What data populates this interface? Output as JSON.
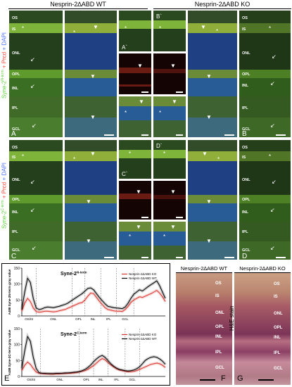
{
  "headers": {
    "wt": "Nesprin-2∆ABD WT",
    "ko": "Nesprin-2∆ABD KO"
  },
  "side_labels": {
    "top": {
      "green": "Syne-2",
      "green_sup": "N-term",
      "red": " + Prcd",
      "blue": " + DAPI"
    },
    "bottom": {
      "green": "Syne-2",
      "green_sup": "C-term",
      "red": " + Prcd",
      "blue": " + DAPI"
    }
  },
  "layers": {
    "os": "OS",
    "is": "IS",
    "onl": "ONL",
    "opl": "OPL",
    "inl": "INL",
    "ipl": "IPL",
    "gcl": "GCL"
  },
  "panel_letters": {
    "A": "A",
    "B": "B",
    "C": "C",
    "D": "D",
    "Ap": "A`",
    "Bp": "B`",
    "Cp": "C`",
    "Dp": "D`",
    "E": "E",
    "F": "F",
    "G": "G"
  },
  "marks": {
    "star": "*",
    "arrow": "↙",
    "arrowhead": "▼"
  },
  "he": {
    "title_wt": "Nesprin-2∆ABD WT",
    "title_ko": "Nesprin-2∆ABD KO",
    "stain": "H&E stain"
  },
  "chart_data": [
    {
      "type": "line",
      "title": "Syne-2N-term",
      "title_main": "Syne-2",
      "title_sup": "N-term",
      "ylabel": "A488 Syne-2N-term gray value",
      "ylim": [
        0,
        150
      ],
      "yticks": [
        0,
        50,
        100,
        150
      ],
      "xlim": [
        0,
        100
      ],
      "layer_boundaries": [
        10,
        35,
        44,
        55,
        66,
        78
      ],
      "layer_labels": [
        "OS/IS",
        "ONL",
        "OPL",
        "INL",
        "IPL",
        "GCL"
      ],
      "layer_label_x": [
        5,
        22,
        39.5,
        49.5,
        60.5,
        72
      ],
      "legend_placement": "top-right",
      "series": [
        {
          "name": "Nesprin-2∆ABD KO",
          "color": "#d9342b",
          "x": [
            0,
            2,
            4,
            6,
            8,
            10,
            12,
            14,
            16,
            18,
            20,
            22,
            24,
            26,
            28,
            30,
            32,
            34,
            36,
            38,
            40,
            42,
            44,
            46,
            48,
            50,
            52,
            54,
            56,
            58,
            60,
            62,
            64,
            66,
            68,
            70,
            72,
            74,
            76,
            78,
            80,
            82,
            84,
            86,
            88,
            90,
            92,
            94,
            96,
            98,
            100
          ],
          "y": [
            15,
            40,
            55,
            45,
            25,
            14,
            12,
            13,
            15,
            15,
            14,
            13,
            14,
            16,
            18,
            20,
            24,
            28,
            32,
            36,
            40,
            42,
            50,
            62,
            72,
            70,
            58,
            46,
            36,
            26,
            20,
            18,
            16,
            15,
            15,
            14,
            20,
            30,
            42,
            50,
            55,
            60,
            58,
            62,
            66,
            70,
            75,
            80,
            72,
            60,
            45
          ]
        },
        {
          "name": "Nesprin-2∆ABD WT",
          "color": "#000000",
          "x": [
            0,
            2,
            4,
            6,
            8,
            10,
            12,
            14,
            16,
            18,
            20,
            22,
            24,
            26,
            28,
            30,
            32,
            34,
            36,
            38,
            40,
            42,
            44,
            46,
            48,
            50,
            52,
            54,
            56,
            58,
            60,
            62,
            64,
            66,
            68,
            70,
            72,
            74,
            76,
            78,
            80,
            82,
            84,
            86,
            88,
            90,
            92,
            94,
            96,
            98,
            100
          ],
          "y": [
            20,
            75,
            118,
            105,
            55,
            25,
            20,
            22,
            26,
            28,
            27,
            26,
            28,
            30,
            33,
            36,
            40,
            46,
            52,
            58,
            64,
            70,
            78,
            86,
            88,
            82,
            70,
            58,
            48,
            38,
            30,
            28,
            26,
            25,
            24,
            23,
            28,
            40,
            55,
            68,
            75,
            82,
            78,
            85,
            92,
            98,
            104,
            110,
            95,
            75,
            55
          ]
        }
      ]
    },
    {
      "type": "line",
      "title": "Syne-2C-term",
      "title_main": "Syne-2",
      "title_sup": "C-term",
      "ylabel": "A488 Syne-2C-term gray value",
      "ylim": [
        0,
        150
      ],
      "yticks": [
        0,
        50,
        100,
        150
      ],
      "xlim": [
        0,
        100
      ],
      "layer_boundaries": [
        13,
        40,
        50,
        60,
        72,
        82
      ],
      "layer_labels": [
        "OS/IS",
        "ONL",
        "OPL",
        "INL",
        "IPL",
        "GCL"
      ],
      "layer_label_x": [
        6.5,
        26.5,
        45,
        55,
        66,
        77
      ],
      "legend_placement": "top-right",
      "series": [
        {
          "name": "Nesprin-2∆ABD KO",
          "color": "#d9342b",
          "x": [
            0,
            2,
            4,
            6,
            8,
            10,
            12,
            14,
            16,
            18,
            20,
            22,
            24,
            26,
            28,
            30,
            32,
            34,
            36,
            38,
            40,
            42,
            44,
            46,
            48,
            50,
            52,
            54,
            56,
            58,
            60,
            62,
            64,
            66,
            68,
            70,
            72,
            74,
            76,
            78,
            80,
            82,
            84,
            86,
            88,
            90,
            92,
            94,
            96,
            98,
            100
          ],
          "y": [
            18,
            35,
            45,
            38,
            25,
            14,
            10,
            9,
            8,
            8,
            7,
            7,
            8,
            8,
            9,
            9,
            10,
            10,
            11,
            12,
            14,
            16,
            18,
            22,
            28,
            34,
            42,
            50,
            56,
            52,
            44,
            36,
            30,
            24,
            20,
            18,
            16,
            15,
            15,
            16,
            18,
            22,
            26,
            30,
            34,
            38,
            40,
            42,
            40,
            35,
            28
          ]
        },
        {
          "name": "Nesprin-2∆ABD WT",
          "color": "#000000",
          "x": [
            0,
            2,
            4,
            6,
            8,
            10,
            12,
            14,
            16,
            18,
            20,
            22,
            24,
            26,
            28,
            30,
            32,
            34,
            36,
            38,
            40,
            42,
            44,
            46,
            48,
            50,
            52,
            54,
            56,
            58,
            60,
            62,
            64,
            66,
            68,
            70,
            72,
            74,
            76,
            78,
            80,
            82,
            84,
            86,
            88,
            90,
            92,
            94,
            96,
            98,
            100
          ],
          "y": [
            25,
            80,
            125,
            110,
            60,
            25,
            12,
            10,
            10,
            9,
            9,
            9,
            10,
            10,
            10,
            11,
            11,
            12,
            13,
            14,
            15,
            18,
            22,
            28,
            36,
            46,
            55,
            62,
            66,
            60,
            50,
            40,
            32,
            26,
            22,
            20,
            18,
            17,
            18,
            20,
            24,
            30,
            40,
            50,
            56,
            60,
            62,
            60,
            55,
            48,
            38
          ]
        }
      ]
    }
  ]
}
